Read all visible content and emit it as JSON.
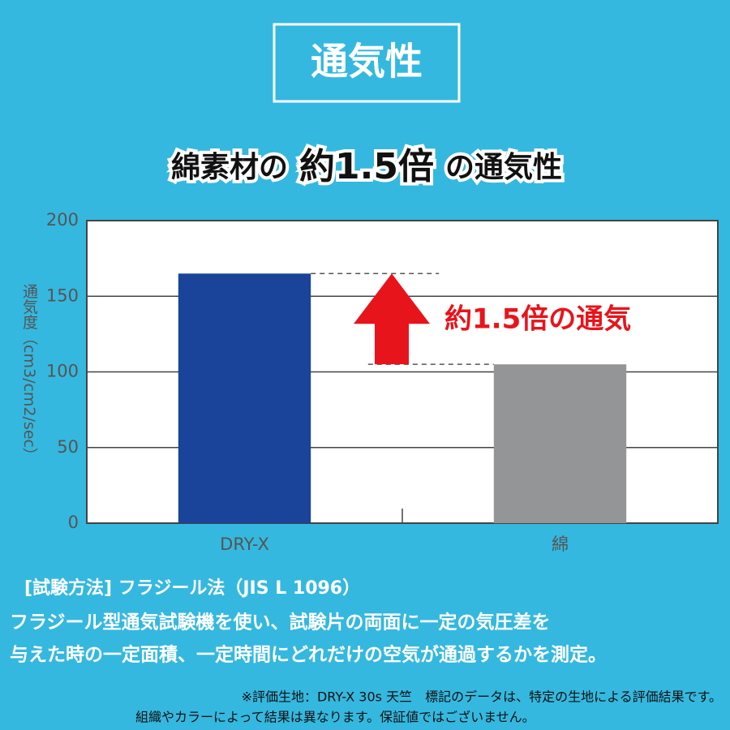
{
  "chart_data": {
    "type": "bar",
    "title": "通気性",
    "subtitle_parts": [
      "綿素材の",
      "約1.5倍",
      "の通気性"
    ],
    "y_label": "通気度（cm3/cm2/sec）",
    "categories": [
      "DRY-X",
      "綿"
    ],
    "values": [
      165,
      105
    ],
    "colors": [
      "#1a4499",
      "#939596"
    ],
    "ylim": [
      0,
      200
    ],
    "yticks": [
      0,
      50,
      100,
      150,
      200
    ],
    "grid": true,
    "annotation": "約1.5倍の通気",
    "method_title": "[試験方法]  フラジール法（JIS L 1096）",
    "description": [
      "フラジール型通気試験機を使い、試験片の両面に一定の気圧差を",
      "与えた時の一定面積、一定時間にどれだけの空気が通過するかを測定。"
    ],
    "footnotes": [
      "※評価生地：DRY-X 30s 天竺　標記のデータは、特定の生地による評価結果です。",
      "組織やカラーによって結果は異なります。保証値ではございません。"
    ]
  }
}
